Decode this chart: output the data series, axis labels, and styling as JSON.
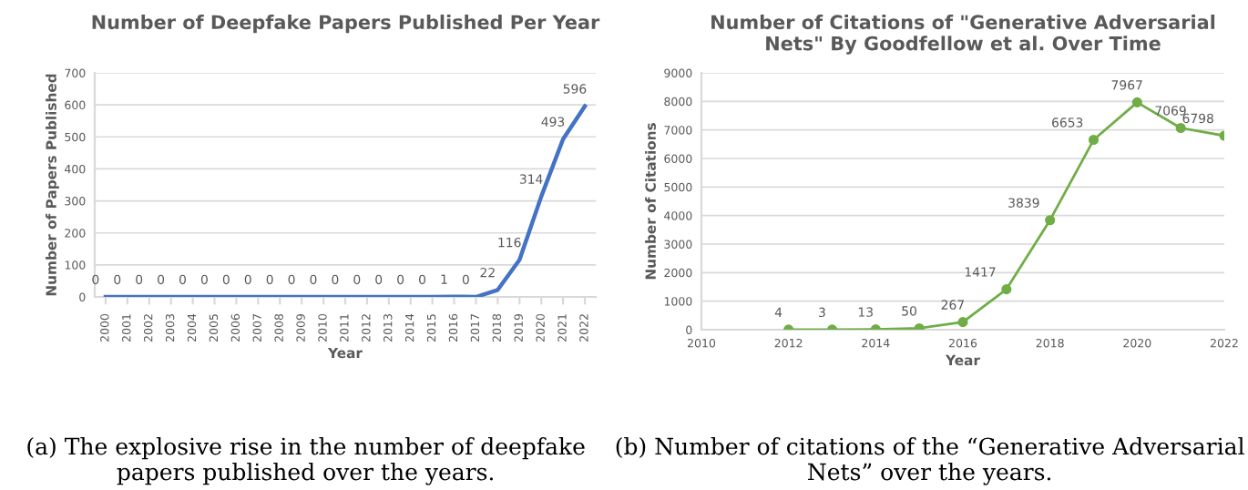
{
  "chart_data": [
    {
      "type": "line",
      "title": "Number of Deepfake Papers Published Per Year",
      "xlabel": "Year",
      "ylabel": "Number of Papers Published",
      "categories": [
        "2000",
        "2001",
        "2002",
        "2003",
        "2004",
        "2005",
        "2006",
        "2007",
        "2008",
        "2009",
        "2010",
        "2011",
        "2012",
        "2013",
        "2014",
        "2015",
        "2016",
        "2017",
        "2018",
        "2019",
        "2020",
        "2021",
        "2022"
      ],
      "series": [
        {
          "color": "#4472c4",
          "values": [
            0,
            0,
            0,
            0,
            0,
            0,
            0,
            0,
            0,
            0,
            0,
            0,
            0,
            0,
            0,
            0,
            1,
            0,
            22,
            116,
            314,
            493,
            596
          ]
        }
      ],
      "ylim": [
        0,
        700
      ],
      "yticks": [
        0,
        100,
        200,
        300,
        400,
        500,
        600,
        700
      ],
      "grid": "y",
      "data_labels": true,
      "marker": "none",
      "annotations": [
        "(a) The explosive rise in the number of deepfake papers published over the years."
      ]
    },
    {
      "type": "line",
      "title": "Number of Citations of \"Generative Adversarial Nets\" By Goodfellow et al. Over Time",
      "xlabel": "Year",
      "ylabel": "Number of Citations",
      "x": [
        2012,
        2013,
        2014,
        2015,
        2016,
        2017,
        2018,
        2019,
        2020,
        2021,
        2022
      ],
      "series": [
        {
          "color": "#70ad47",
          "values": [
            4,
            3,
            13,
            50,
            267,
            1417,
            3839,
            6653,
            7967,
            7069,
            6798
          ]
        }
      ],
      "xlim": [
        2010,
        2022
      ],
      "xticks": [
        2010,
        2012,
        2014,
        2016,
        2018,
        2020,
        2022
      ],
      "ylim": [
        0,
        9000
      ],
      "yticks": [
        0,
        1000,
        2000,
        3000,
        4000,
        5000,
        6000,
        7000,
        8000,
        9000
      ],
      "grid": "y",
      "data_labels": true,
      "marker": "circle",
      "annotations": [
        "(b) Number of citations of the “Generative Adversarial Nets” over the years."
      ]
    }
  ]
}
